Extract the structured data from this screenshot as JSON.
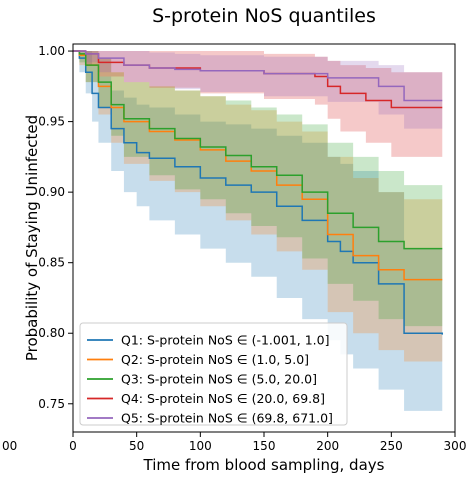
{
  "chart_data": {
    "type": "line",
    "title": "S-protein NoS quantiles",
    "xlabel": "Time from blood sampling, days",
    "ylabel": "Probability of Staying Uninfected",
    "xlim": [
      0,
      300
    ],
    "ylim": [
      0.73,
      1.005
    ],
    "xticks": [
      0,
      50,
      100,
      150,
      200,
      250,
      300
    ],
    "xtick_labels": [
      "0",
      "50",
      "100",
      "150",
      "200",
      "250",
      "300"
    ],
    "yticks": [
      0.75,
      0.8,
      0.85,
      0.9,
      0.95,
      1.0
    ],
    "ytick_labels": [
      "0.75",
      "0.80",
      "0.85",
      "0.90",
      "0.95",
      "1.00"
    ],
    "grid": false,
    "legend_position": "lower-left",
    "series": [
      {
        "name": "Q1: S-protein NoS ∈ (-1.001, 1.0]",
        "color": "#1f77b4",
        "x": [
          0,
          5,
          10,
          15,
          20,
          30,
          40,
          50,
          60,
          80,
          100,
          120,
          140,
          160,
          180,
          200,
          210,
          220,
          240,
          260,
          290
        ],
        "y": [
          1.0,
          0.995,
          0.985,
          0.97,
          0.96,
          0.945,
          0.935,
          0.928,
          0.924,
          0.918,
          0.91,
          0.905,
          0.9,
          0.89,
          0.88,
          0.865,
          0.858,
          0.85,
          0.835,
          0.8,
          0.799
        ],
        "ci_low": [
          1.0,
          0.985,
          0.97,
          0.95,
          0.935,
          0.915,
          0.9,
          0.89,
          0.88,
          0.87,
          0.86,
          0.85,
          0.84,
          0.825,
          0.81,
          0.795,
          0.785,
          0.775,
          0.76,
          0.745,
          0.74
        ],
        "ci_high": [
          1.0,
          1.0,
          1.0,
          0.99,
          0.982,
          0.972,
          0.967,
          0.962,
          0.96,
          0.955,
          0.95,
          0.948,
          0.945,
          0.94,
          0.935,
          0.925,
          0.92,
          0.915,
          0.9,
          0.86,
          0.858
        ]
      },
      {
        "name": "Q2: S-protein NoS ∈ (1.0, 5.0]",
        "color": "#ff7f0e",
        "x": [
          0,
          5,
          10,
          20,
          30,
          40,
          60,
          80,
          100,
          120,
          140,
          160,
          180,
          200,
          220,
          240,
          260,
          290
        ],
        "y": [
          1.0,
          0.997,
          0.99,
          0.975,
          0.96,
          0.95,
          0.943,
          0.937,
          0.93,
          0.922,
          0.915,
          0.905,
          0.895,
          0.87,
          0.855,
          0.845,
          0.838,
          0.838
        ],
        "ci_low": [
          1.0,
          0.99,
          0.978,
          0.955,
          0.935,
          0.92,
          0.908,
          0.9,
          0.89,
          0.88,
          0.87,
          0.858,
          0.845,
          0.815,
          0.8,
          0.788,
          0.78,
          0.78
        ],
        "ci_high": [
          1.0,
          1.0,
          1.0,
          0.995,
          0.985,
          0.978,
          0.975,
          0.972,
          0.968,
          0.962,
          0.958,
          0.95,
          0.943,
          0.925,
          0.91,
          0.9,
          0.895,
          0.895
        ]
      },
      {
        "name": "Q3: S-protein NoS ∈ (5.0, 20.0]",
        "color": "#2ca02c",
        "x": [
          0,
          5,
          10,
          20,
          30,
          40,
          60,
          80,
          100,
          120,
          140,
          160,
          180,
          200,
          220,
          240,
          260,
          290
        ],
        "y": [
          1.0,
          0.998,
          0.99,
          0.978,
          0.962,
          0.952,
          0.945,
          0.938,
          0.932,
          0.926,
          0.918,
          0.912,
          0.9,
          0.885,
          0.875,
          0.865,
          0.86,
          0.86
        ],
        "ci_low": [
          1.0,
          0.992,
          0.978,
          0.96,
          0.94,
          0.925,
          0.912,
          0.902,
          0.895,
          0.885,
          0.876,
          0.868,
          0.853,
          0.835,
          0.823,
          0.81,
          0.805,
          0.805
        ],
        "ci_high": [
          1.0,
          1.0,
          1.0,
          0.995,
          0.985,
          0.978,
          0.975,
          0.972,
          0.968,
          0.965,
          0.96,
          0.955,
          0.948,
          0.935,
          0.925,
          0.915,
          0.905,
          0.905
        ]
      },
      {
        "name": "Q4: S-protein NoS ∈ (20.0, 69.8]",
        "color": "#d62728",
        "x": [
          0,
          10,
          20,
          40,
          60,
          100,
          150,
          190,
          200,
          210,
          230,
          250,
          290
        ],
        "y": [
          1.0,
          0.998,
          0.992,
          0.99,
          0.988,
          0.986,
          0.984,
          0.982,
          0.975,
          0.97,
          0.965,
          0.96,
          0.96
        ],
        "ci_low": [
          1.0,
          0.99,
          0.982,
          0.978,
          0.974,
          0.97,
          0.966,
          0.962,
          0.952,
          0.943,
          0.935,
          0.925,
          0.925
        ],
        "ci_high": [
          1.0,
          1.0,
          1.0,
          1.0,
          1.0,
          1.0,
          0.998,
          0.996,
          0.993,
          0.99,
          0.988,
          0.985,
          0.985
        ]
      },
      {
        "name": "Q5: S-protein NoS ∈ (69.8, 671.0]",
        "color": "#9467bd",
        "x": [
          0,
          10,
          20,
          40,
          60,
          80,
          100,
          150,
          200,
          240,
          260,
          290
        ],
        "y": [
          1.0,
          0.998,
          0.995,
          0.99,
          0.988,
          0.987,
          0.986,
          0.984,
          0.981,
          0.975,
          0.965,
          0.965
        ],
        "ci_low": [
          1.0,
          0.992,
          0.985,
          0.978,
          0.975,
          0.973,
          0.971,
          0.968,
          0.964,
          0.955,
          0.945,
          0.945
        ],
        "ci_high": [
          1.0,
          1.0,
          1.0,
          1.0,
          0.999,
          0.998,
          0.997,
          0.996,
          0.993,
          0.99,
          0.985,
          0.985
        ]
      }
    ]
  },
  "extra_tick_labels": {
    "left_edge": "00"
  }
}
